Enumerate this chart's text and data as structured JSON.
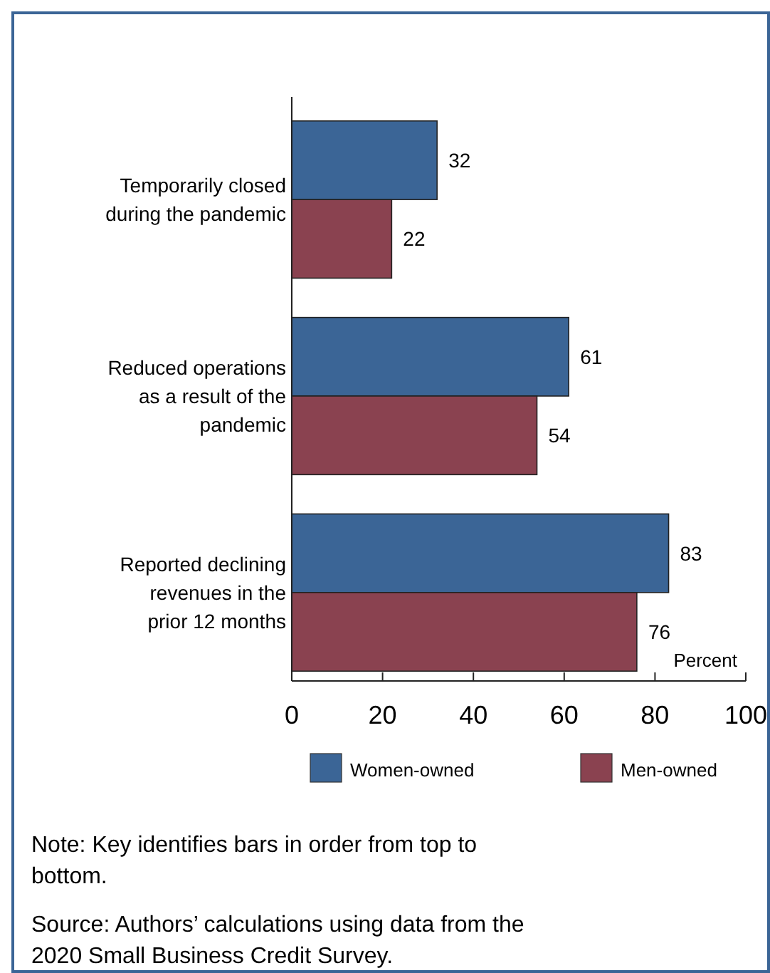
{
  "chart_data": {
    "type": "bar",
    "orientation": "horizontal",
    "xlabel": "Percent",
    "categories": [
      "Temporarily closed during the pandemic",
      "Reduced operations as a result of the pandemic",
      "Reported declining revenues in the prior 12 months"
    ],
    "series": [
      {
        "name": "Women-owned",
        "color": "#3b6596",
        "values": [
          32,
          61,
          83
        ]
      },
      {
        "name": "Men-owned",
        "color": "#8a4250",
        "values": [
          22,
          54,
          76
        ]
      }
    ],
    "xlim": [
      0,
      100
    ],
    "xticks": [
      0,
      20,
      40,
      60,
      80,
      100
    ],
    "data_labels": true,
    "legend": "bottom",
    "grid": false,
    "annotations": [
      "Note: Key identifies bars in order from top to bottom.",
      "Source: Authors’ calculations using data from the 2020 Small Business Credit Survey."
    ]
  }
}
